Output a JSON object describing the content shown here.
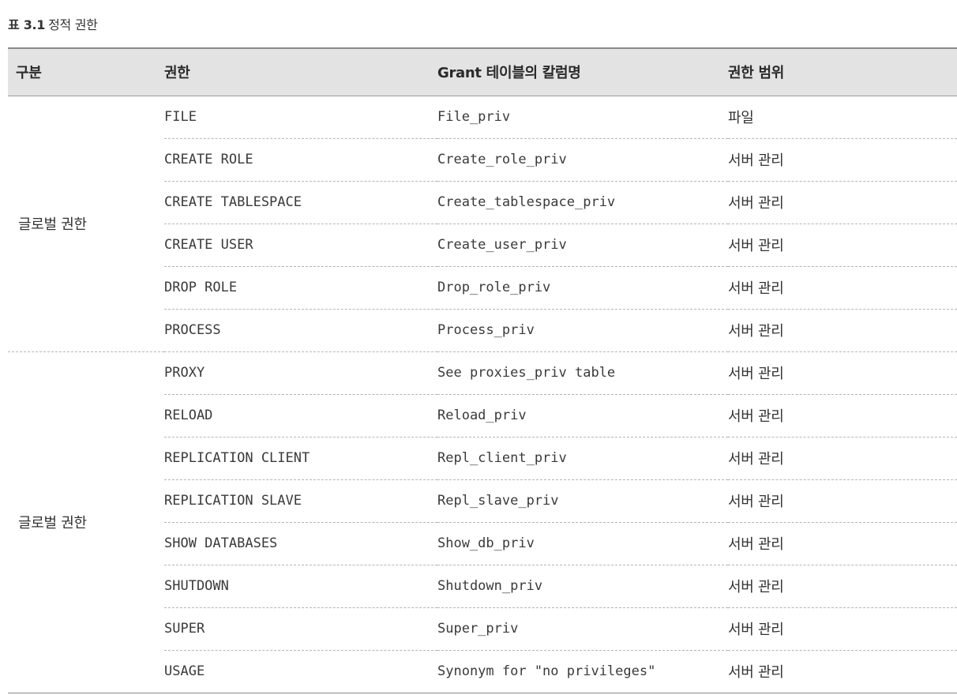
{
  "caption": {
    "label": "표 3.1",
    "title": "정적 권한"
  },
  "table": {
    "headers": [
      "구분",
      "권한",
      "Grant 테이블의 칼럼명",
      "권한 범위"
    ],
    "groups": [
      {
        "category": "글로벌 권한",
        "rows": [
          {
            "privilege": "FILE",
            "column": "File_priv",
            "scope": "파일"
          },
          {
            "privilege": "CREATE ROLE",
            "column": "Create_role_priv",
            "scope": "서버 관리"
          },
          {
            "privilege": "CREATE TABLESPACE",
            "column": "Create_tablespace_priv",
            "scope": "서버 관리"
          },
          {
            "privilege": "CREATE USER",
            "column": "Create_user_priv",
            "scope": "서버 관리"
          },
          {
            "privilege": "DROP ROLE",
            "column": "Drop_role_priv",
            "scope": "서버 관리"
          },
          {
            "privilege": "PROCESS",
            "column": "Process_priv",
            "scope": "서버 관리"
          }
        ]
      },
      {
        "category": "글로벌 권한",
        "rows": [
          {
            "privilege": "PROXY",
            "column": "See proxies_priv table",
            "scope": "서버 관리"
          },
          {
            "privilege": "RELOAD",
            "column": "Reload_priv",
            "scope": "서버 관리"
          },
          {
            "privilege": "REPLICATION CLIENT",
            "column": "Repl_client_priv",
            "scope": "서버 관리"
          },
          {
            "privilege": "REPLICATION SLAVE",
            "column": "Repl_slave_priv",
            "scope": "서버 관리"
          },
          {
            "privilege": "SHOW DATABASES",
            "column": "Show_db_priv",
            "scope": "서버 관리"
          },
          {
            "privilege": "SHUTDOWN",
            "column": "Shutdown_priv",
            "scope": "서버 관리"
          },
          {
            "privilege": "SUPER",
            "column": "Super_priv",
            "scope": "서버 관리"
          },
          {
            "privilege": "USAGE",
            "column": "Synonym for \"no privileges\"",
            "scope": "서버 관리"
          }
        ]
      }
    ]
  }
}
